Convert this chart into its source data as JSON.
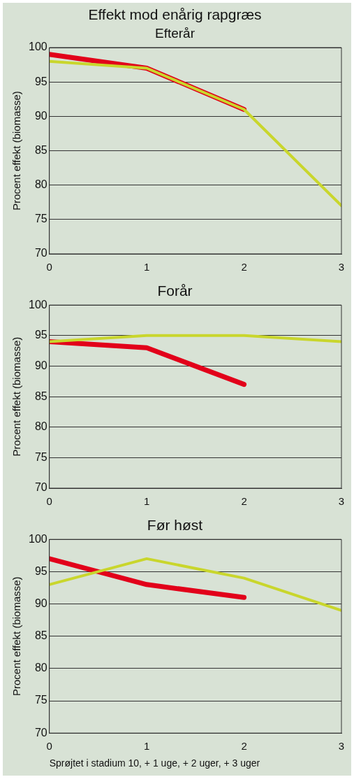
{
  "chart_data": [
    {
      "type": "line",
      "title": "Effekt mod enårig rapgræs",
      "subtitle": "Efterår",
      "ylabel": "Procent effekt (biomasse)",
      "x": [
        0,
        1,
        2,
        3
      ],
      "xlim": [
        0,
        3
      ],
      "xticks": [
        0,
        1,
        2,
        3
      ],
      "ylim": [
        70,
        100
      ],
      "yticks": [
        70,
        75,
        80,
        85,
        90,
        95,
        100
      ],
      "grid": "y",
      "series": [
        {
          "color": "#c9d62c",
          "values": [
            98,
            97,
            91,
            77
          ]
        },
        {
          "color": "#e2001a",
          "values": [
            99,
            97,
            91,
            null
          ]
        }
      ]
    },
    {
      "type": "line",
      "title": "Forår",
      "ylabel": "Procent effekt (biomasse)",
      "x": [
        0,
        1,
        2,
        3
      ],
      "xlim": [
        0,
        3
      ],
      "xticks": [
        0,
        1,
        2,
        3
      ],
      "ylim": [
        70,
        100
      ],
      "yticks": [
        70,
        75,
        80,
        85,
        90,
        95,
        100
      ],
      "grid": "y",
      "series": [
        {
          "color": "#c9d62c",
          "values": [
            94,
            95,
            95,
            94
          ]
        },
        {
          "color": "#e2001a",
          "values": [
            94,
            93,
            87,
            null
          ]
        }
      ]
    },
    {
      "type": "line",
      "title": "Før høst",
      "ylabel": "Procent effekt (biomasse)",
      "xlabel": "Sprøjtet i stadium 10, + 1 uge, + 2 uger, + 3 uger",
      "x": [
        0,
        1,
        2,
        3
      ],
      "xlim": [
        0,
        3
      ],
      "xticks": [
        0,
        1,
        2,
        3
      ],
      "ylim": [
        70,
        100
      ],
      "yticks": [
        70,
        75,
        80,
        85,
        90,
        95,
        100
      ],
      "grid": "y",
      "series": [
        {
          "color": "#c9d62c",
          "values": [
            93,
            97,
            94,
            89
          ]
        },
        {
          "color": "#e2001a",
          "values": [
            97,
            93,
            91,
            null
          ]
        }
      ]
    }
  ]
}
